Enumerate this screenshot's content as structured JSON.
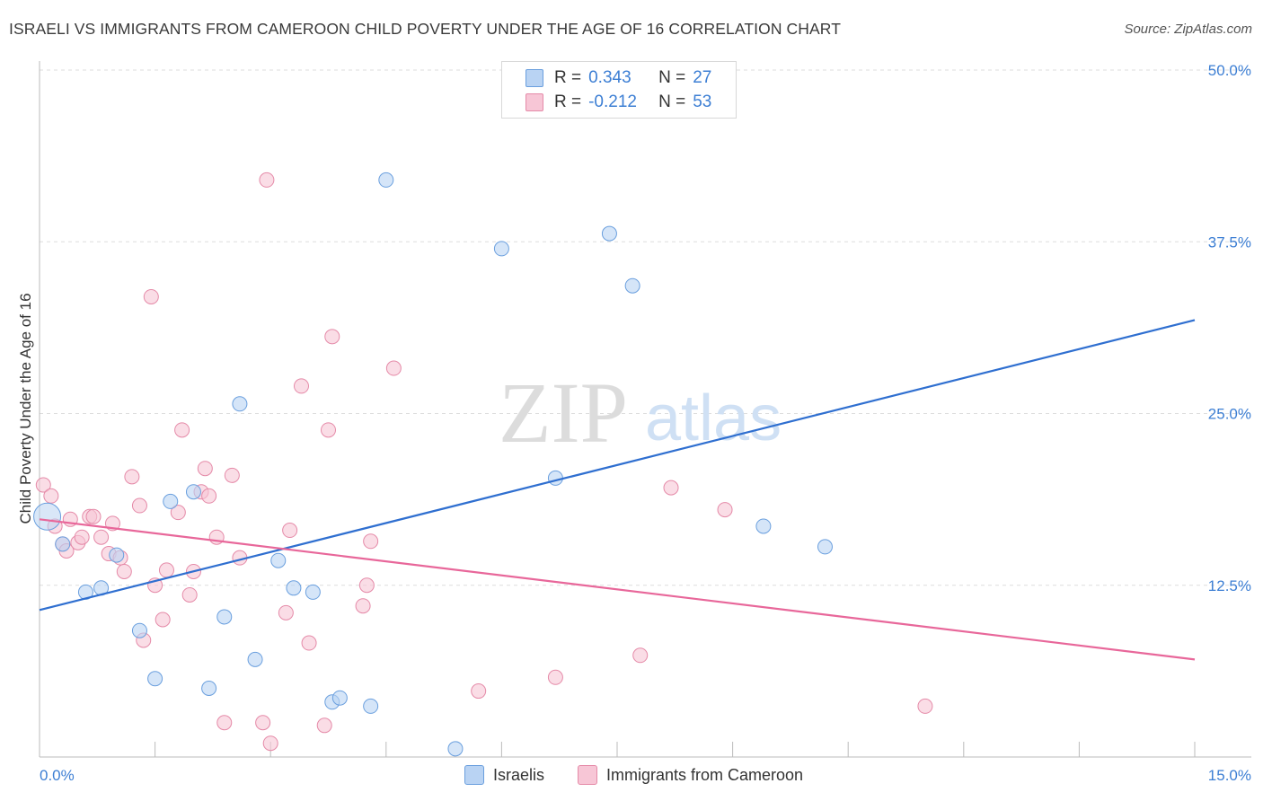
{
  "title": "ISRAELI VS IMMIGRANTS FROM CAMEROON CHILD POVERTY UNDER THE AGE OF 16 CORRELATION CHART",
  "source": "Source: ZipAtlas.com",
  "watermark": {
    "zip": "ZIP",
    "atlas": "atlas"
  },
  "legend": {
    "row1": {
      "r_label": "R =",
      "r_value": "0.343",
      "n_label": "N =",
      "n_value": "27"
    },
    "row2": {
      "r_label": "R =",
      "r_value": "-0.212",
      "n_label": "N =",
      "n_value": "53"
    }
  },
  "bottom_legend": {
    "series1": "Israelis",
    "series2": "Immigrants from Cameroon"
  },
  "colors": {
    "blue_fill": "#b9d3f3",
    "blue_stroke": "#6a9fde",
    "blue_line": "#2f6fd0",
    "pink_fill": "#f7c6d6",
    "pink_stroke": "#e58aa8",
    "pink_line": "#e8679a",
    "axis_text": "#3d7fd4",
    "grid": "#dddddd"
  },
  "chart_data": {
    "type": "scatter",
    "title": "ISRAELI VS IMMIGRANTS FROM CAMEROON CHILD POVERTY UNDER THE AGE OF 16 CORRELATION CHART",
    "xlabel": "",
    "ylabel": "Child Poverty Under the Age of 16",
    "xlim": [
      0,
      15
    ],
    "ylim": [
      0,
      50
    ],
    "x_tick_labels": [
      "0.0%",
      "15.0%"
    ],
    "y_ticks": [
      12.5,
      25.0,
      37.5,
      50.0
    ],
    "y_tick_labels": [
      "12.5%",
      "25.0%",
      "37.5%",
      "50.0%"
    ],
    "grid": true,
    "legend_position": "top-center",
    "series": [
      {
        "name": "Israelis",
        "R": 0.343,
        "N": 27,
        "trend": {
          "x": [
            0,
            15
          ],
          "y": [
            10.7,
            31.8
          ]
        },
        "points": [
          {
            "x": 0.1,
            "y": 17.5,
            "big": true
          },
          {
            "x": 0.3,
            "y": 15.5
          },
          {
            "x": 0.6,
            "y": 12.0
          },
          {
            "x": 0.8,
            "y": 12.3
          },
          {
            "x": 1.0,
            "y": 14.7
          },
          {
            "x": 1.3,
            "y": 9.2
          },
          {
            "x": 1.5,
            "y": 5.7
          },
          {
            "x": 1.7,
            "y": 18.6
          },
          {
            "x": 2.0,
            "y": 19.3
          },
          {
            "x": 2.2,
            "y": 5.0
          },
          {
            "x": 2.4,
            "y": 10.2
          },
          {
            "x": 2.6,
            "y": 25.7
          },
          {
            "x": 2.8,
            "y": 7.1
          },
          {
            "x": 3.1,
            "y": 14.3
          },
          {
            "x": 3.3,
            "y": 12.3
          },
          {
            "x": 3.55,
            "y": 12.0
          },
          {
            "x": 3.8,
            "y": 4.0
          },
          {
            "x": 3.9,
            "y": 4.3
          },
          {
            "x": 4.3,
            "y": 3.7
          },
          {
            "x": 4.5,
            "y": 42.0
          },
          {
            "x": 5.4,
            "y": 0.6
          },
          {
            "x": 6.0,
            "y": 37.0
          },
          {
            "x": 6.7,
            "y": 20.3
          },
          {
            "x": 7.4,
            "y": 38.1
          },
          {
            "x": 7.7,
            "y": 34.3
          },
          {
            "x": 9.4,
            "y": 16.8
          },
          {
            "x": 10.2,
            "y": 15.3
          }
        ]
      },
      {
        "name": "Immigrants from Cameroon",
        "R": -0.212,
        "N": 53,
        "trend": {
          "x": [
            0,
            15
          ],
          "y": [
            17.3,
            7.1
          ]
        },
        "points": [
          {
            "x": 0.05,
            "y": 19.8
          },
          {
            "x": 0.15,
            "y": 19.0
          },
          {
            "x": 0.2,
            "y": 16.8
          },
          {
            "x": 0.3,
            "y": 15.5
          },
          {
            "x": 0.35,
            "y": 15.0
          },
          {
            "x": 0.4,
            "y": 17.3
          },
          {
            "x": 0.5,
            "y": 15.6
          },
          {
            "x": 0.55,
            "y": 16.0
          },
          {
            "x": 0.65,
            "y": 17.5
          },
          {
            "x": 0.7,
            "y": 17.5
          },
          {
            "x": 0.8,
            "y": 16.0
          },
          {
            "x": 0.9,
            "y": 14.8
          },
          {
            "x": 0.95,
            "y": 17.0
          },
          {
            "x": 1.05,
            "y": 14.5
          },
          {
            "x": 1.1,
            "y": 13.5
          },
          {
            "x": 1.2,
            "y": 20.4
          },
          {
            "x": 1.3,
            "y": 18.3
          },
          {
            "x": 1.35,
            "y": 8.5
          },
          {
            "x": 1.45,
            "y": 33.5
          },
          {
            "x": 1.5,
            "y": 12.5
          },
          {
            "x": 1.6,
            "y": 10.0
          },
          {
            "x": 1.65,
            "y": 13.6
          },
          {
            "x": 1.8,
            "y": 17.8
          },
          {
            "x": 1.85,
            "y": 23.8
          },
          {
            "x": 1.95,
            "y": 11.8
          },
          {
            "x": 2.0,
            "y": 13.5
          },
          {
            "x": 2.1,
            "y": 19.3
          },
          {
            "x": 2.15,
            "y": 21.0
          },
          {
            "x": 2.2,
            "y": 19.0
          },
          {
            "x": 2.3,
            "y": 16.0
          },
          {
            "x": 2.4,
            "y": 2.5
          },
          {
            "x": 2.5,
            "y": 20.5
          },
          {
            "x": 2.6,
            "y": 14.5
          },
          {
            "x": 2.9,
            "y": 2.5
          },
          {
            "x": 3.0,
            "y": 1.0
          },
          {
            "x": 2.95,
            "y": 42.0
          },
          {
            "x": 3.2,
            "y": 10.5
          },
          {
            "x": 3.25,
            "y": 16.5
          },
          {
            "x": 3.4,
            "y": 27.0
          },
          {
            "x": 3.5,
            "y": 8.3
          },
          {
            "x": 3.7,
            "y": 2.3
          },
          {
            "x": 3.75,
            "y": 23.8
          },
          {
            "x": 3.8,
            "y": 30.6
          },
          {
            "x": 4.2,
            "y": 11.0
          },
          {
            "x": 4.25,
            "y": 12.5
          },
          {
            "x": 4.3,
            "y": 15.7
          },
          {
            "x": 4.6,
            "y": 28.3
          },
          {
            "x": 5.7,
            "y": 4.8
          },
          {
            "x": 6.7,
            "y": 5.8
          },
          {
            "x": 7.8,
            "y": 7.4
          },
          {
            "x": 8.2,
            "y": 19.6
          },
          {
            "x": 8.9,
            "y": 18.0
          },
          {
            "x": 11.5,
            "y": 3.7
          }
        ]
      }
    ]
  }
}
